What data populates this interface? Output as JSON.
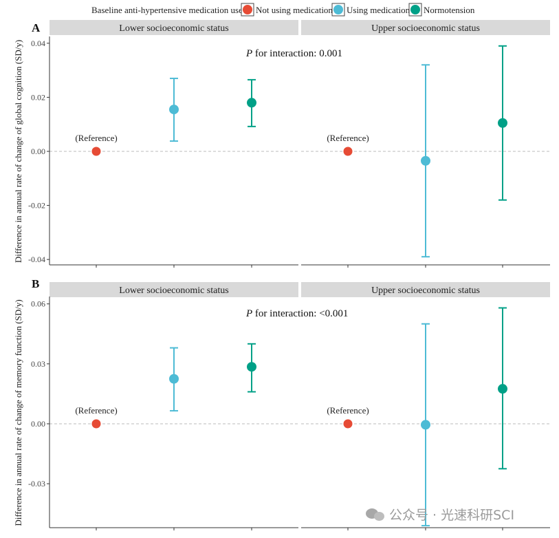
{
  "legend": {
    "title": "Baseline anti-hypertensive medication use",
    "items": [
      {
        "label": "Not using medication",
        "color": "#E64B35"
      },
      {
        "label": "Using medication",
        "color": "#4DBBD5"
      },
      {
        "label": "Normotension",
        "color": "#00A087"
      }
    ]
  },
  "chart_data": [
    {
      "type": "scatter",
      "panel_label": "A",
      "ylabel": "Difference in annual rate of change of global cognition (SD/y)",
      "ylim": [
        -0.042,
        0.042
      ],
      "yticks": [
        -0.04,
        -0.02,
        0.0,
        0.02,
        0.04
      ],
      "ytick_labels": [
        "-0.04",
        "-0.02",
        "0.00",
        "0.02",
        "0.04"
      ],
      "annotation_prefix": "P",
      "annotation": " for interaction: 0.001",
      "reference_label": "(Reference)",
      "facets": [
        {
          "title": "Lower socioeconomic status",
          "points": [
            {
              "group": "Not using medication",
              "value": 0.0,
              "lower": null,
              "upper": null
            },
            {
              "group": "Using medication",
              "value": 0.0155,
              "lower": 0.0038,
              "upper": 0.027
            },
            {
              "group": "Normotension",
              "value": 0.018,
              "lower": 0.0092,
              "upper": 0.0265
            }
          ]
        },
        {
          "title": "Upper socioeconomic status",
          "points": [
            {
              "group": "Not using medication",
              "value": 0.0,
              "lower": null,
              "upper": null
            },
            {
              "group": "Using medication",
              "value": -0.0035,
              "lower": -0.039,
              "upper": 0.032
            },
            {
              "group": "Normotension",
              "value": 0.0105,
              "lower": -0.018,
              "upper": 0.039
            }
          ]
        }
      ]
    },
    {
      "type": "scatter",
      "panel_label": "B",
      "ylabel": "Difference in annual rate of change of memory function (SD/y)",
      "ylim": [
        -0.052,
        0.063
      ],
      "yticks": [
        -0.03,
        0.0,
        0.03,
        0.06
      ],
      "ytick_labels": [
        "-0.03",
        "0.00",
        "0.03",
        "0.06"
      ],
      "annotation_prefix": "P",
      "annotation": " for interaction: <0.001",
      "reference_label": "(Reference)",
      "facets": [
        {
          "title": "Lower socioeconomic status",
          "points": [
            {
              "group": "Not using medication",
              "value": 0.0,
              "lower": null,
              "upper": null
            },
            {
              "group": "Using medication",
              "value": 0.0225,
              "lower": 0.0065,
              "upper": 0.038
            },
            {
              "group": "Normotension",
              "value": 0.0285,
              "lower": 0.016,
              "upper": 0.04
            }
          ]
        },
        {
          "title": "Upper socioeconomic status",
          "points": [
            {
              "group": "Not using medication",
              "value": 0.0,
              "lower": null,
              "upper": null
            },
            {
              "group": "Using medication",
              "value": -0.0005,
              "lower": -0.051,
              "upper": 0.05
            },
            {
              "group": "Normotension",
              "value": 0.0175,
              "lower": -0.0225,
              "upper": 0.058
            }
          ]
        }
      ]
    }
  ],
  "watermark": {
    "text": "公众号 · 光速科研SCI"
  }
}
